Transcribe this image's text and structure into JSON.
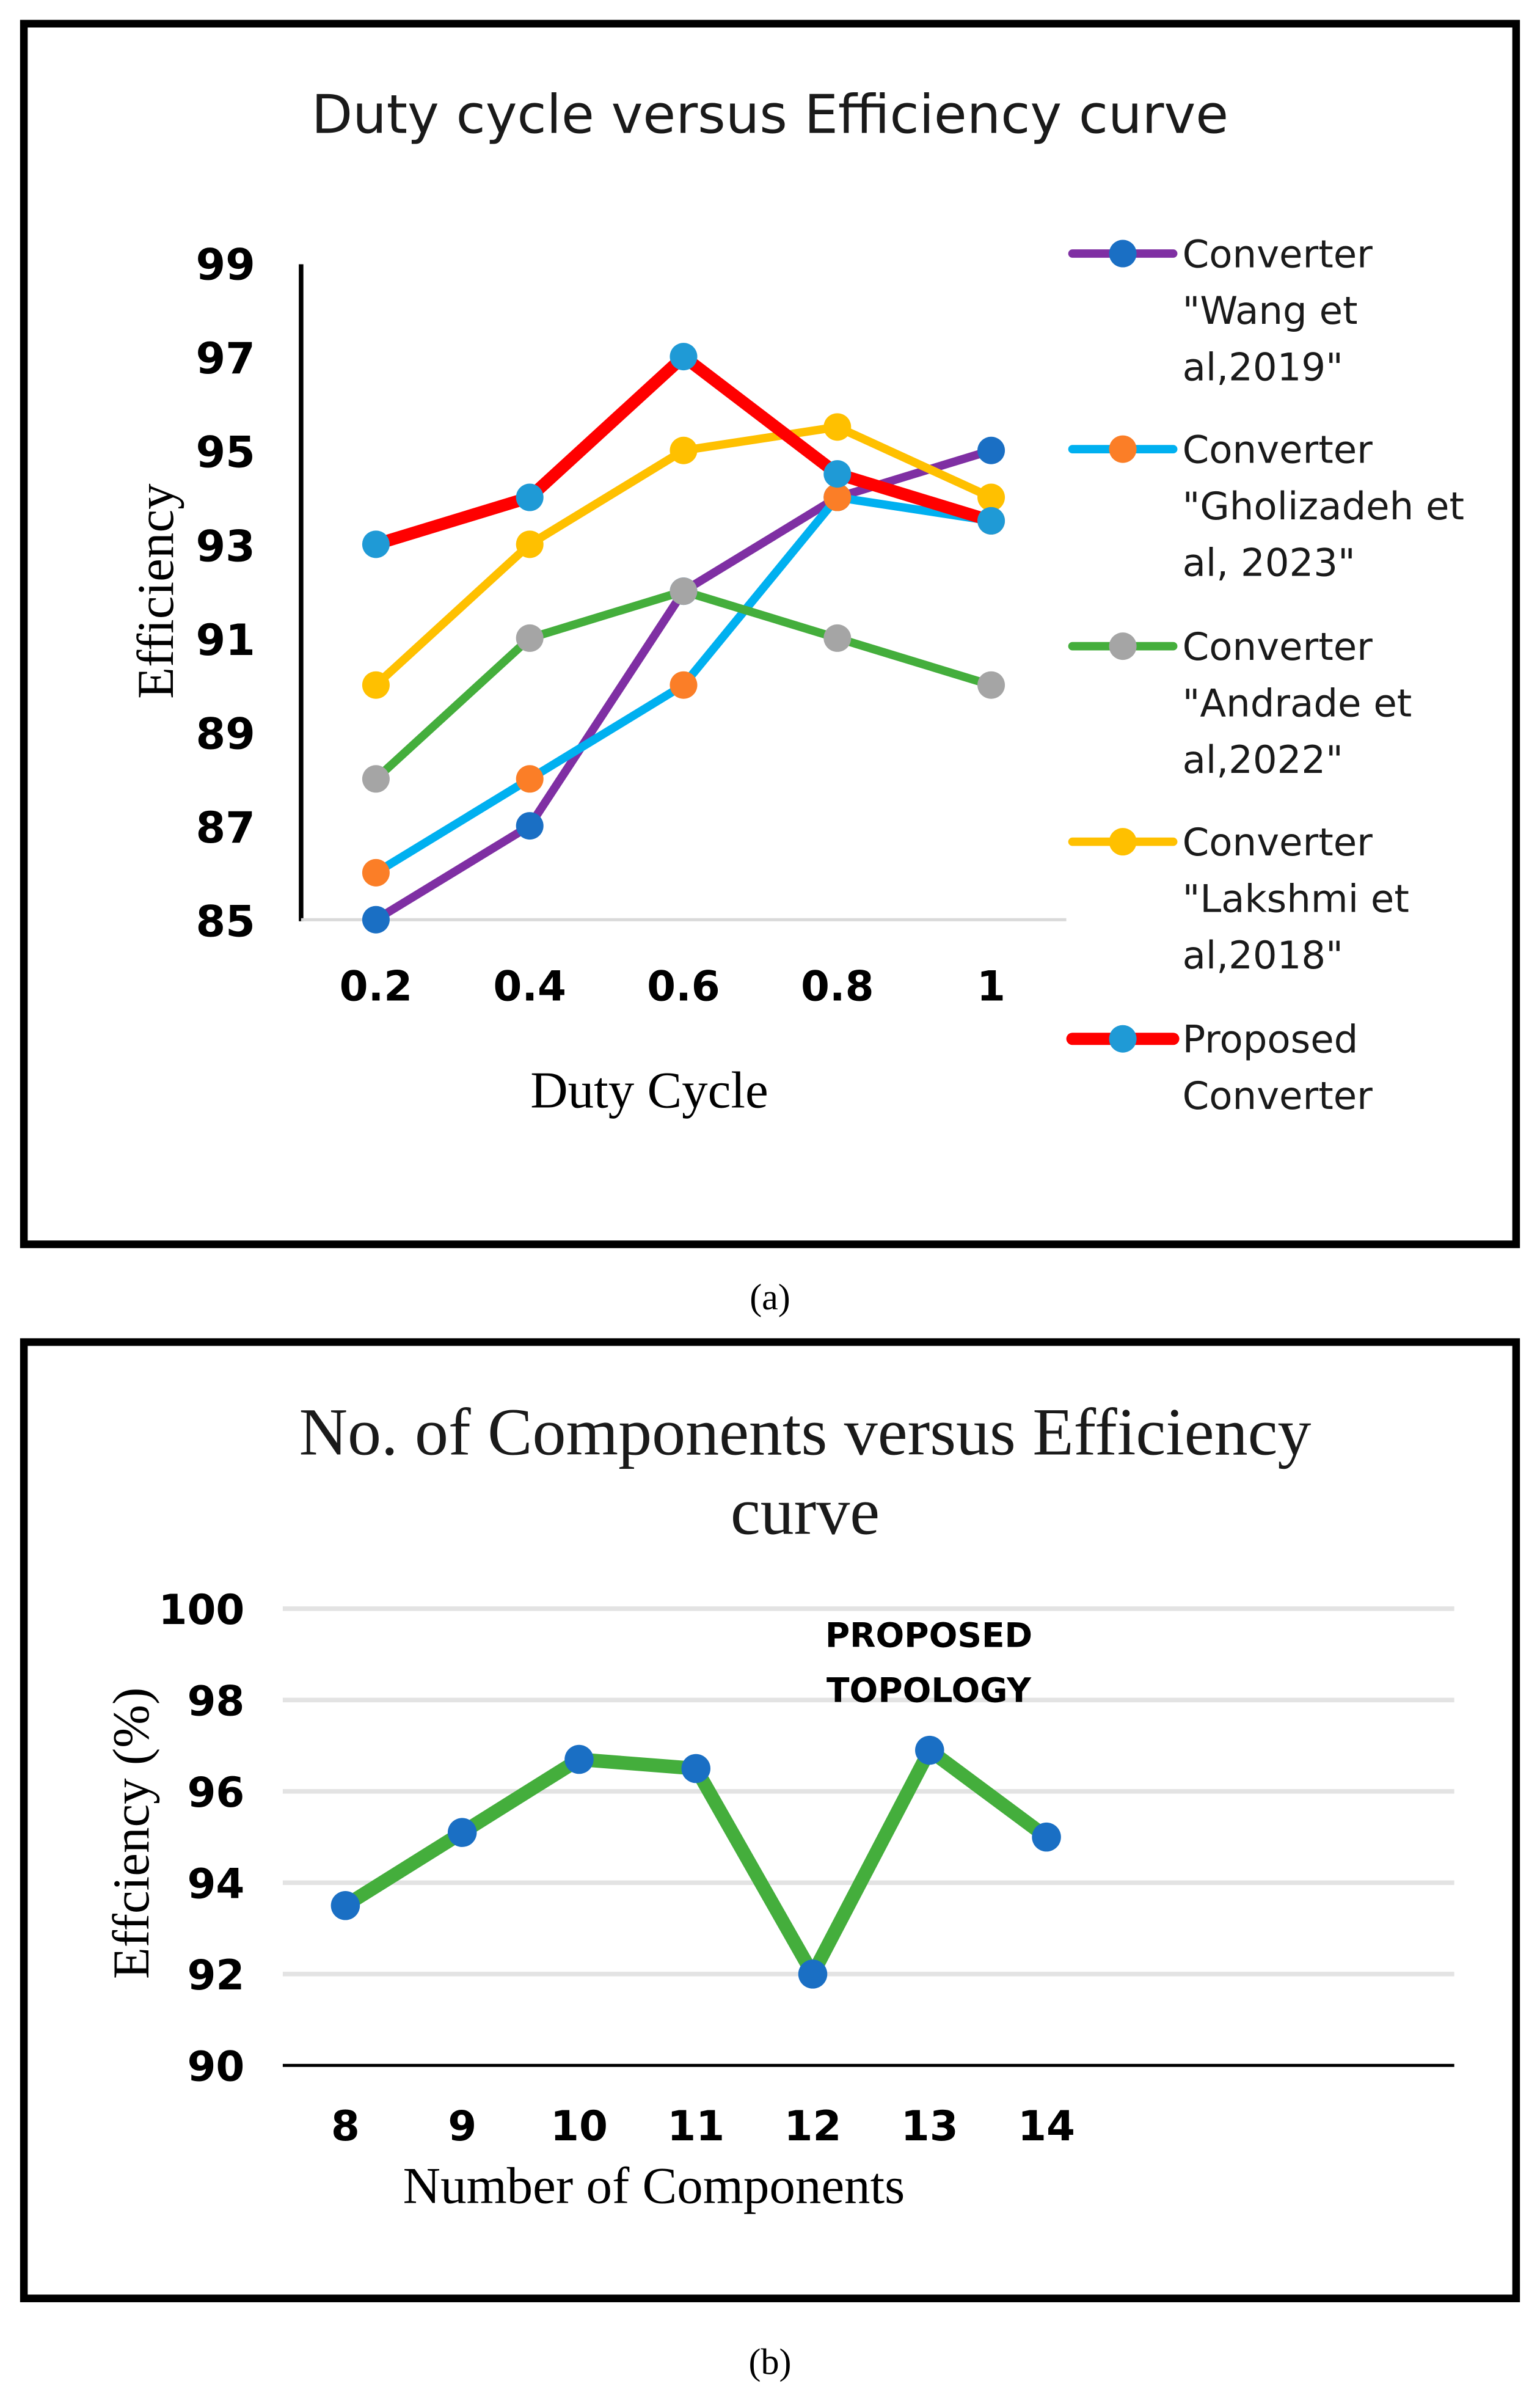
{
  "chart_data": [
    {
      "type": "line",
      "title": "Duty cycle versus Efficiency curve",
      "xlabel": "Duty Cycle",
      "ylabel": "Efficiency",
      "categories": [
        "0.2",
        "0.4",
        "0.6",
        "0.8",
        "1"
      ],
      "yticks": [
        "85",
        "87",
        "89",
        "91",
        "93",
        "95",
        "97",
        "99"
      ],
      "ylim": [
        85,
        99
      ],
      "grid": false,
      "legend_position": "right",
      "series": [
        {
          "name": "Converter \"Wang et al,2019\"",
          "legend_lines": [
            "Converter",
            "\"Wang et",
            "al,2019\""
          ],
          "values": [
            85,
            87,
            92,
            94,
            95
          ],
          "line_color": "#7f2fa3",
          "marker_color": "#1a6fc4"
        },
        {
          "name": "Converter \"Gholizadeh et al, 2023\"",
          "legend_lines": [
            "Converter",
            "\"Gholizadeh et",
            "al, 2023\""
          ],
          "values": [
            86,
            88,
            90,
            94,
            93.5
          ],
          "line_color": "#00b0f0",
          "marker_color": "#fb7e27"
        },
        {
          "name": "Converter \"Andrade et al,2022\"",
          "legend_lines": [
            "Converter",
            "\"Andrade et",
            "al,2022\""
          ],
          "values": [
            88,
            91,
            92,
            91,
            90
          ],
          "line_color": "#44ae3c",
          "marker_color": "#a5a5a5"
        },
        {
          "name": "Converter \"Lakshmi et al,2018\"",
          "legend_lines": [
            "Converter",
            "\"Lakshmi et",
            "al,2018\""
          ],
          "values": [
            90,
            93,
            95,
            95.5,
            94
          ],
          "line_color": "#ffc000",
          "marker_color": "#ffc000"
        },
        {
          "name": "Proposed Converter",
          "legend_lines": [
            "Proposed",
            "Converter"
          ],
          "values": [
            93,
            94,
            97,
            94.5,
            93.5
          ],
          "line_color": "#ff0000",
          "marker_color": "#1f9ad6"
        }
      ],
      "caption": "(a)"
    },
    {
      "type": "line",
      "title_lines": [
        "No. of Components versus Efficiency",
        "curve"
      ],
      "xlabel": "Number of Components",
      "ylabel": "Effciency (%)",
      "categories": [
        "8",
        "9",
        "10",
        "11",
        "12",
        "13",
        "14"
      ],
      "yticks": [
        "90",
        "92",
        "94",
        "96",
        "98",
        "100"
      ],
      "ylim": [
        90,
        100
      ],
      "grid": true,
      "series": [
        {
          "name": "Efficiency",
          "values": [
            93.5,
            95.1,
            96.7,
            96.5,
            92,
            96.9,
            95
          ],
          "line_color": "#44ae3c",
          "marker_color": "#1a6fc4"
        }
      ],
      "annotation_lines": [
        "PROPOSED",
        "TOPOLOGY"
      ],
      "caption": "(b)"
    }
  ]
}
